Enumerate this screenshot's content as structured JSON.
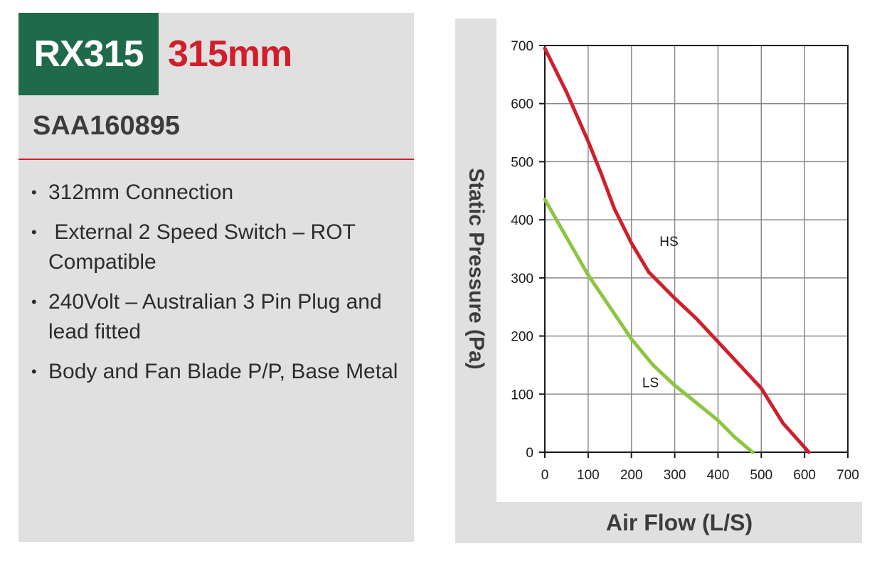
{
  "product": {
    "model": "RX315",
    "size": "315mm",
    "part_number": "SAA160895",
    "features": [
      "312mm Connection",
      " External 2 Speed Switch – ROT Compatible",
      "240Volt – Australian 3 Pin Plug and lead fitted",
      "Body and Fan Blade P/P, Base Metal"
    ],
    "bullet": "•"
  },
  "colors": {
    "brand_green": "#1f6b49",
    "accent_red": "#d01f2b",
    "panel_gray": "#e0e0e1",
    "hs_line": "#d01f2b",
    "ls_line": "#8cc63f"
  },
  "chart_data": {
    "type": "line",
    "xlabel": "Air Flow (L/S)",
    "ylabel": "Static Pressure (Pa)",
    "xlim": [
      0,
      700
    ],
    "ylim": [
      0,
      700
    ],
    "xticks": [
      0,
      100,
      200,
      300,
      400,
      500,
      600,
      700
    ],
    "yticks": [
      0,
      100,
      200,
      300,
      400,
      500,
      600,
      700
    ],
    "grid": true,
    "series": [
      {
        "name": "HS",
        "color": "#d01f2b",
        "x": [
          0,
          50,
          100,
          130,
          160,
          200,
          240,
          260,
          300,
          350,
          400,
          450,
          500,
          550,
          610
        ],
        "y": [
          695,
          620,
          535,
          480,
          420,
          360,
          310,
          295,
          265,
          230,
          190,
          150,
          110,
          50,
          0
        ]
      },
      {
        "name": "LS",
        "color": "#8cc63f",
        "x": [
          0,
          50,
          100,
          150,
          200,
          250,
          300,
          350,
          400,
          440,
          480
        ],
        "y": [
          435,
          370,
          305,
          250,
          195,
          150,
          115,
          85,
          55,
          25,
          0
        ]
      }
    ],
    "annotations": [
      {
        "text": "HS",
        "x": 265,
        "y": 355
      },
      {
        "text": "LS",
        "x": 225,
        "y": 112
      }
    ]
  }
}
